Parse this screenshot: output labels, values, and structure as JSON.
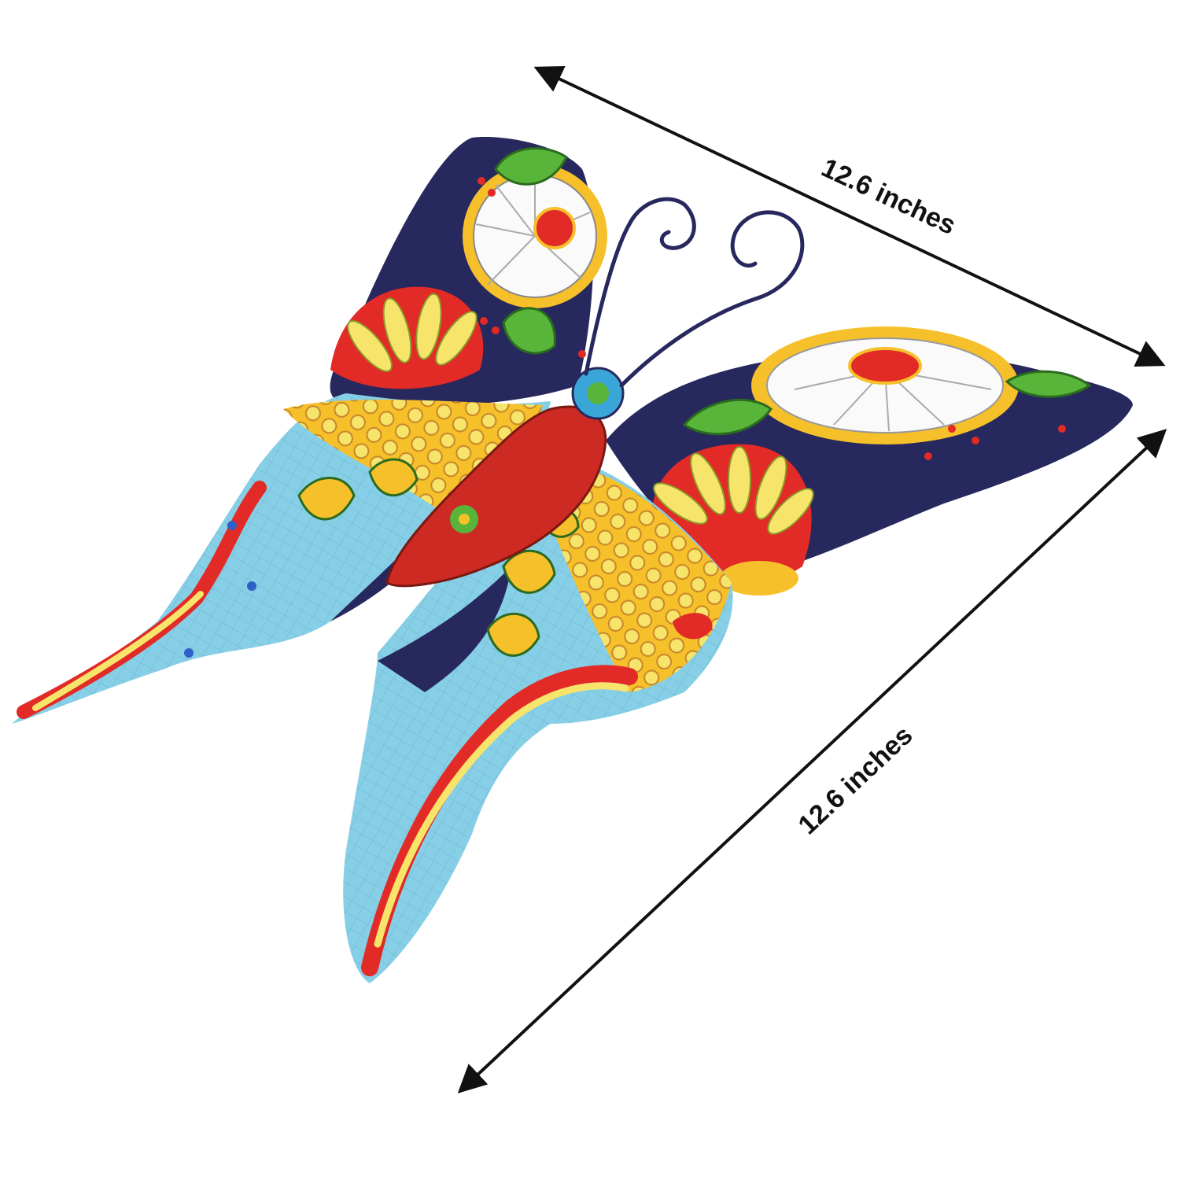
{
  "dimensions": {
    "width_label": "12.6 inches",
    "height_label": "12.6 inches"
  },
  "product": {
    "icon": "butterfly-icon"
  },
  "colors": {
    "navy": "#27285e",
    "red": "#e22a26",
    "yellow": "#f6c02a",
    "light_yellow": "#f7e46a",
    "light_blue": "#86cfe6",
    "green": "#59b43a",
    "white": "#fafafa",
    "arrow": "#111111"
  }
}
